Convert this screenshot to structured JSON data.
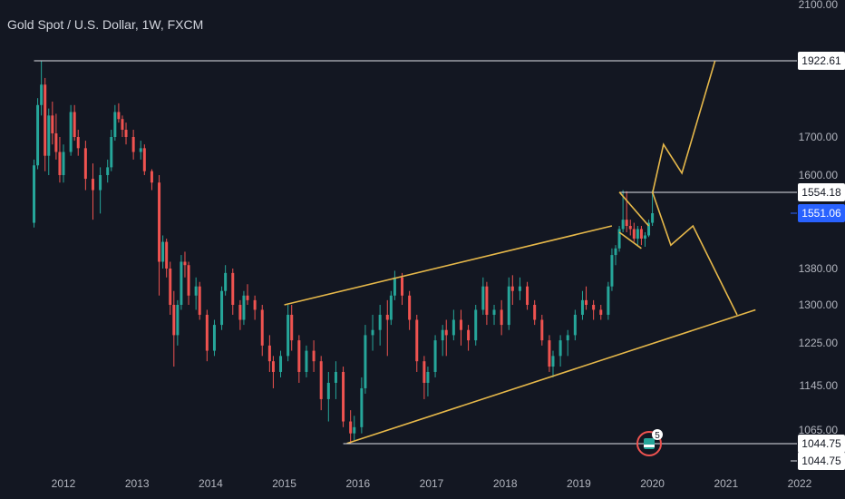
{
  "chart_data": {
    "type": "candlestick",
    "title": "Gold Spot / U.S. Dollar, 1W, FXCM",
    "xlabel": "",
    "ylabel": "",
    "x_ticks": [
      "2012",
      "2013",
      "2014",
      "2015",
      "2016",
      "2017",
      "2018",
      "2019",
      "2020",
      "2021",
      "2022"
    ],
    "y_ticks": [
      2100,
      1700,
      1600,
      1380,
      1300,
      1225,
      1145,
      1065
    ],
    "price_labels": [
      {
        "value": "1922.61",
        "style": "white"
      },
      {
        "value": "1554.18",
        "style": "white"
      },
      {
        "value": "1551.06",
        "style": "accent"
      },
      {
        "value": "1044.75",
        "style": "white"
      },
      {
        "value": "1044.75",
        "style": "white"
      }
    ],
    "series": [
      {
        "values": [
          [
            2011.6,
            1520,
            1640,
            1505,
            1625
          ],
          [
            2011.65,
            1625,
            1810,
            1615,
            1790
          ],
          [
            2011.7,
            1790,
            1921,
            1760,
            1850
          ],
          [
            2011.75,
            1850,
            1870,
            1610,
            1650
          ],
          [
            2011.8,
            1650,
            1780,
            1600,
            1760
          ],
          [
            2011.85,
            1760,
            1800,
            1680,
            1710
          ],
          [
            2011.9,
            1710,
            1765,
            1640,
            1660
          ],
          [
            2011.95,
            1660,
            1700,
            1580,
            1600
          ],
          [
            2012.0,
            1600,
            1680,
            1580,
            1660
          ],
          [
            2012.1,
            1660,
            1790,
            1650,
            1770
          ],
          [
            2012.15,
            1770,
            1790,
            1690,
            1700
          ],
          [
            2012.2,
            1700,
            1720,
            1650,
            1670
          ],
          [
            2012.3,
            1670,
            1690,
            1560,
            1590
          ],
          [
            2012.4,
            1590,
            1630,
            1530,
            1560
          ],
          [
            2012.5,
            1560,
            1620,
            1550,
            1600
          ],
          [
            2012.6,
            1600,
            1640,
            1580,
            1620
          ],
          [
            2012.65,
            1620,
            1720,
            1610,
            1700
          ],
          [
            2012.7,
            1700,
            1790,
            1690,
            1770
          ],
          [
            2012.75,
            1770,
            1795,
            1740,
            1750
          ],
          [
            2012.8,
            1750,
            1760,
            1700,
            1720
          ],
          [
            2012.85,
            1720,
            1740,
            1680,
            1700
          ],
          [
            2012.95,
            1700,
            1720,
            1640,
            1660
          ],
          [
            2013.05,
            1660,
            1690,
            1640,
            1670
          ],
          [
            2013.1,
            1670,
            1680,
            1600,
            1610
          ],
          [
            2013.2,
            1610,
            1615,
            1560,
            1580
          ],
          [
            2013.3,
            1580,
            1600,
            1320,
            1400
          ],
          [
            2013.35,
            1400,
            1480,
            1380,
            1460
          ],
          [
            2013.4,
            1460,
            1470,
            1360,
            1380
          ],
          [
            2013.45,
            1380,
            1400,
            1280,
            1300
          ],
          [
            2013.5,
            1300,
            1330,
            1180,
            1240
          ],
          [
            2013.55,
            1240,
            1310,
            1220,
            1300
          ],
          [
            2013.6,
            1300,
            1420,
            1290,
            1400
          ],
          [
            2013.65,
            1400,
            1430,
            1360,
            1390
          ],
          [
            2013.7,
            1390,
            1400,
            1300,
            1320
          ],
          [
            2013.8,
            1320,
            1360,
            1290,
            1340
          ],
          [
            2013.85,
            1340,
            1350,
            1270,
            1280
          ],
          [
            2013.95,
            1280,
            1290,
            1190,
            1210
          ],
          [
            2014.05,
            1210,
            1270,
            1200,
            1260
          ],
          [
            2014.15,
            1260,
            1340,
            1250,
            1330
          ],
          [
            2014.2,
            1330,
            1390,
            1320,
            1370
          ],
          [
            2014.3,
            1370,
            1380,
            1280,
            1300
          ],
          [
            2014.4,
            1300,
            1310,
            1250,
            1270
          ],
          [
            2014.45,
            1270,
            1330,
            1260,
            1320
          ],
          [
            2014.5,
            1320,
            1345,
            1300,
            1310
          ],
          [
            2014.6,
            1310,
            1320,
            1270,
            1290
          ],
          [
            2014.7,
            1290,
            1300,
            1200,
            1220
          ],
          [
            2014.8,
            1220,
            1240,
            1170,
            1190
          ],
          [
            2014.85,
            1190,
            1200,
            1140,
            1170
          ],
          [
            2014.95,
            1170,
            1210,
            1160,
            1200
          ],
          [
            2015.05,
            1200,
            1300,
            1190,
            1280
          ],
          [
            2015.1,
            1280,
            1300,
            1210,
            1230
          ],
          [
            2015.2,
            1230,
            1240,
            1150,
            1170
          ],
          [
            2015.3,
            1170,
            1220,
            1160,
            1210
          ],
          [
            2015.4,
            1210,
            1230,
            1170,
            1190
          ],
          [
            2015.5,
            1190,
            1200,
            1100,
            1120
          ],
          [
            2015.6,
            1120,
            1170,
            1080,
            1150
          ],
          [
            2015.7,
            1150,
            1190,
            1120,
            1170
          ],
          [
            2015.8,
            1170,
            1180,
            1070,
            1080
          ],
          [
            2015.9,
            1080,
            1100,
            1045,
            1060
          ],
          [
            2015.95,
            1060,
            1090,
            1050,
            1070
          ],
          [
            2016.05,
            1070,
            1160,
            1060,
            1140
          ],
          [
            2016.1,
            1140,
            1260,
            1130,
            1240
          ],
          [
            2016.2,
            1240,
            1280,
            1210,
            1250
          ],
          [
            2016.3,
            1250,
            1300,
            1220,
            1280
          ],
          [
            2016.4,
            1280,
            1310,
            1200,
            1270
          ],
          [
            2016.45,
            1270,
            1330,
            1260,
            1320
          ],
          [
            2016.5,
            1320,
            1375,
            1310,
            1360
          ],
          [
            2016.6,
            1360,
            1370,
            1300,
            1320
          ],
          [
            2016.7,
            1320,
            1330,
            1250,
            1270
          ],
          [
            2016.8,
            1270,
            1280,
            1170,
            1190
          ],
          [
            2016.9,
            1190,
            1200,
            1120,
            1150
          ],
          [
            2016.95,
            1150,
            1180,
            1125,
            1170
          ],
          [
            2017.05,
            1170,
            1240,
            1160,
            1230
          ],
          [
            2017.15,
            1230,
            1260,
            1200,
            1250
          ],
          [
            2017.2,
            1250,
            1270,
            1200,
            1240
          ],
          [
            2017.3,
            1240,
            1290,
            1230,
            1270
          ],
          [
            2017.4,
            1270,
            1290,
            1220,
            1250
          ],
          [
            2017.5,
            1250,
            1260,
            1210,
            1230
          ],
          [
            2017.6,
            1230,
            1300,
            1220,
            1290
          ],
          [
            2017.7,
            1290,
            1360,
            1280,
            1340
          ],
          [
            2017.75,
            1340,
            1350,
            1260,
            1280
          ],
          [
            2017.85,
            1280,
            1300,
            1260,
            1290
          ],
          [
            2017.95,
            1290,
            1310,
            1240,
            1260
          ],
          [
            2018.05,
            1260,
            1360,
            1250,
            1340
          ],
          [
            2018.1,
            1340,
            1365,
            1300,
            1330
          ],
          [
            2018.2,
            1330,
            1360,
            1310,
            1340
          ],
          [
            2018.3,
            1340,
            1350,
            1290,
            1300
          ],
          [
            2018.4,
            1300,
            1310,
            1260,
            1270
          ],
          [
            2018.5,
            1270,
            1280,
            1220,
            1230
          ],
          [
            2018.6,
            1230,
            1240,
            1170,
            1180
          ],
          [
            2018.65,
            1180,
            1210,
            1160,
            1200
          ],
          [
            2018.75,
            1200,
            1240,
            1180,
            1230
          ],
          [
            2018.85,
            1230,
            1250,
            1200,
            1240
          ],
          [
            2018.95,
            1240,
            1290,
            1230,
            1280
          ],
          [
            2019.05,
            1280,
            1330,
            1270,
            1310
          ],
          [
            2019.1,
            1310,
            1340,
            1290,
            1300
          ],
          [
            2019.2,
            1300,
            1310,
            1270,
            1290
          ],
          [
            2019.3,
            1290,
            1300,
            1270,
            1280
          ],
          [
            2019.4,
            1280,
            1350,
            1270,
            1340
          ],
          [
            2019.45,
            1340,
            1440,
            1330,
            1420
          ],
          [
            2019.5,
            1420,
            1450,
            1390,
            1440
          ],
          [
            2019.55,
            1440,
            1510,
            1430,
            1500
          ],
          [
            2019.6,
            1500,
            1560,
            1490,
            1530
          ],
          [
            2019.65,
            1530,
            1557,
            1490,
            1510
          ],
          [
            2019.7,
            1510,
            1530,
            1480,
            1500
          ],
          [
            2019.75,
            1500,
            1520,
            1460,
            1470
          ],
          [
            2019.8,
            1470,
            1510,
            1450,
            1500
          ],
          [
            2019.85,
            1500,
            1510,
            1450,
            1470
          ],
          [
            2019.9,
            1470,
            1490,
            1445,
            1480
          ],
          [
            2019.95,
            1480,
            1530,
            1475,
            1520
          ],
          [
            2020.0,
            1520,
            1560,
            1510,
            1551
          ]
        ]
      }
    ],
    "annotation_lines": [
      {
        "kind": "channel-upper",
        "points": [
          [
            2015.0,
            1300
          ],
          [
            2019.45,
            1510
          ]
        ]
      },
      {
        "kind": "channel-lower",
        "points": [
          [
            2015.85,
            1045
          ],
          [
            2021.4,
            1290
          ]
        ]
      },
      {
        "kind": "horizontal",
        "value": 1922.61,
        "x_start": 2011.6
      },
      {
        "kind": "horizontal",
        "value": 1554.18,
        "x_start": 2019.55
      },
      {
        "kind": "horizontal",
        "value": 1044.75,
        "x_start": 2015.8
      },
      {
        "kind": "flag-upper",
        "points": [
          [
            2019.55,
            1555
          ],
          [
            2019.95,
            1510
          ]
        ]
      },
      {
        "kind": "flag-lower",
        "points": [
          [
            2019.55,
            1490
          ],
          [
            2019.85,
            1440
          ]
        ]
      },
      {
        "kind": "projection-up",
        "points": [
          [
            2020.0,
            1554
          ],
          [
            2020.15,
            1680
          ],
          [
            2020.4,
            1605
          ],
          [
            2020.85,
            1922
          ]
        ]
      },
      {
        "kind": "projection-down",
        "points": [
          [
            2020.0,
            1555
          ],
          [
            2020.25,
            1450
          ],
          [
            2020.55,
            1510
          ],
          [
            2021.15,
            1280
          ]
        ]
      }
    ],
    "event_badge": {
      "count": "5"
    }
  }
}
